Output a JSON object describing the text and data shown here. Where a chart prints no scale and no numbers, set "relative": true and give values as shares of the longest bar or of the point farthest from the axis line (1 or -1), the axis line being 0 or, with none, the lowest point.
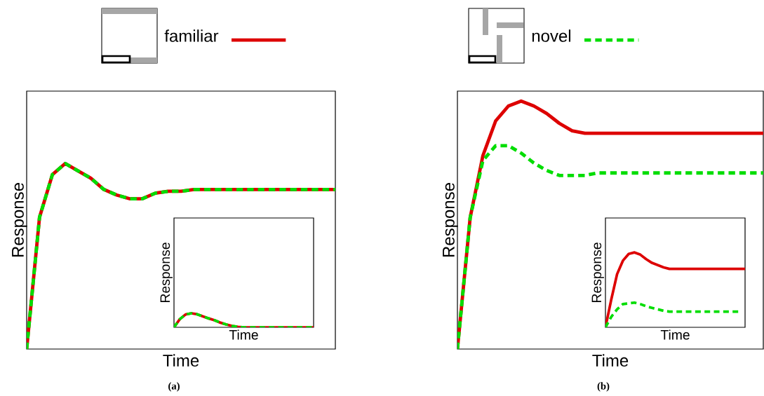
{
  "chart_data": [
    {
      "type": "line",
      "relative": true,
      "xlabel": "Time",
      "ylabel": "Response",
      "legend": "top",
      "annotations": [
        "(a)"
      ],
      "categories": [
        null,
        null,
        null,
        null,
        null,
        null,
        null,
        null,
        null,
        null,
        null,
        null,
        null,
        null,
        null,
        null,
        null,
        null,
        null,
        null,
        null,
        null,
        null,
        null,
        null
      ],
      "series": [
        {
          "name": "familiar",
          "color": "#dd0000",
          "line_style": "solid",
          "values": [
            0,
            0.71,
            0.94,
            1,
            0.96,
            0.92,
            0.86,
            0.83,
            0.81,
            0.81,
            0.84,
            0.85,
            0.85,
            0.86,
            0.86,
            0.86,
            0.86,
            0.86,
            0.86,
            0.86,
            0.86,
            0.86,
            0.86,
            0.86,
            0.86
          ]
        },
        {
          "name": "novel",
          "color": "#00dd00",
          "line_style": "dashed",
          "values": [
            0,
            0.71,
            0.94,
            1,
            0.96,
            0.92,
            0.86,
            0.83,
            0.81,
            0.81,
            0.84,
            0.85,
            0.85,
            0.86,
            0.86,
            0.86,
            0.86,
            0.86,
            0.86,
            0.86,
            0.86,
            0.86,
            0.86,
            0.86,
            0.86
          ]
        }
      ]
    },
    {
      "type": "line",
      "relative": true,
      "xlabel": "Time",
      "ylabel": "Response",
      "categories": [
        null,
        null,
        null,
        null,
        null,
        null,
        null,
        null,
        null,
        null,
        null,
        null,
        null,
        null,
        null,
        null,
        null,
        null,
        null,
        null,
        null,
        null,
        null,
        null,
        null
      ],
      "series": [
        {
          "color": "#dd0000",
          "line_style": "solid",
          "values": [
            0,
            0.58,
            0.92,
            1,
            0.93,
            0.78,
            0.63,
            0.5,
            0.33,
            0.2,
            0.1,
            0.03,
            0,
            0,
            0,
            0,
            0,
            0,
            0,
            0,
            0,
            0,
            0,
            0,
            0
          ]
        },
        {
          "color": "#00dd00",
          "line_style": "dashed",
          "values": [
            0,
            0.58,
            0.92,
            1,
            0.93,
            0.78,
            0.63,
            0.5,
            0.33,
            0.2,
            0.1,
            0.03,
            0,
            0,
            0,
            0,
            0,
            0,
            0,
            0,
            0,
            0,
            0,
            0,
            0
          ]
        }
      ]
    },
    {
      "type": "line",
      "relative": true,
      "xlabel": "Time",
      "ylabel": "Response",
      "annotations": [
        "(b)"
      ],
      "categories": [
        null,
        null,
        null,
        null,
        null,
        null,
        null,
        null,
        null,
        null,
        null,
        null,
        null,
        null,
        null,
        null,
        null,
        null,
        null,
        null,
        null,
        null,
        null,
        null,
        null
      ],
      "series": [
        {
          "color": "#dd0000",
          "line_style": "solid",
          "values": [
            0,
            0.53,
            0.78,
            0.92,
            0.98,
            1,
            0.98,
            0.95,
            0.91,
            0.88,
            0.87,
            0.87,
            0.87,
            0.87,
            0.87,
            0.87,
            0.87,
            0.87,
            0.87,
            0.87,
            0.87,
            0.87,
            0.87,
            0.87,
            0.87
          ]
        },
        {
          "color": "#00dd00",
          "line_style": "dashed",
          "values": [
            0,
            0.53,
            0.76,
            0.82,
            0.82,
            0.79,
            0.75,
            0.72,
            0.7,
            0.7,
            0.7,
            0.71,
            0.71,
            0.71,
            0.71,
            0.71,
            0.71,
            0.71,
            0.71,
            0.71,
            0.71,
            0.71,
            0.71,
            0.71,
            0.71
          ]
        }
      ]
    },
    {
      "type": "line",
      "relative": true,
      "xlabel": "Time",
      "ylabel": "Response",
      "categories": [
        null,
        null,
        null,
        null,
        null,
        null,
        null,
        null,
        null,
        null,
        null,
        null,
        null,
        null,
        null,
        null,
        null,
        null,
        null,
        null,
        null,
        null,
        null,
        null,
        null
      ],
      "series": [
        {
          "color": "#dd0000",
          "line_style": "solid",
          "values": [
            0,
            0.37,
            0.71,
            0.89,
            0.98,
            1,
            0.97,
            0.91,
            0.86,
            0.83,
            0.8,
            0.78,
            0.78,
            0.78,
            0.78,
            0.78,
            0.78,
            0.78,
            0.78,
            0.78,
            0.78,
            0.78,
            0.78,
            0.78,
            0.78
          ]
        },
        {
          "color": "#00dd00",
          "line_style": "dashed",
          "values": [
            0,
            0.14,
            0.24,
            0.31,
            0.32,
            0.33,
            0.31,
            0.28,
            0.26,
            0.24,
            0.22,
            0.21,
            0.21,
            0.21,
            0.21,
            0.21,
            0.21,
            0.21,
            0.21,
            0.21,
            0.21,
            0.21,
            0.21,
            0.21,
            null
          ]
        }
      ]
    }
  ]
}
